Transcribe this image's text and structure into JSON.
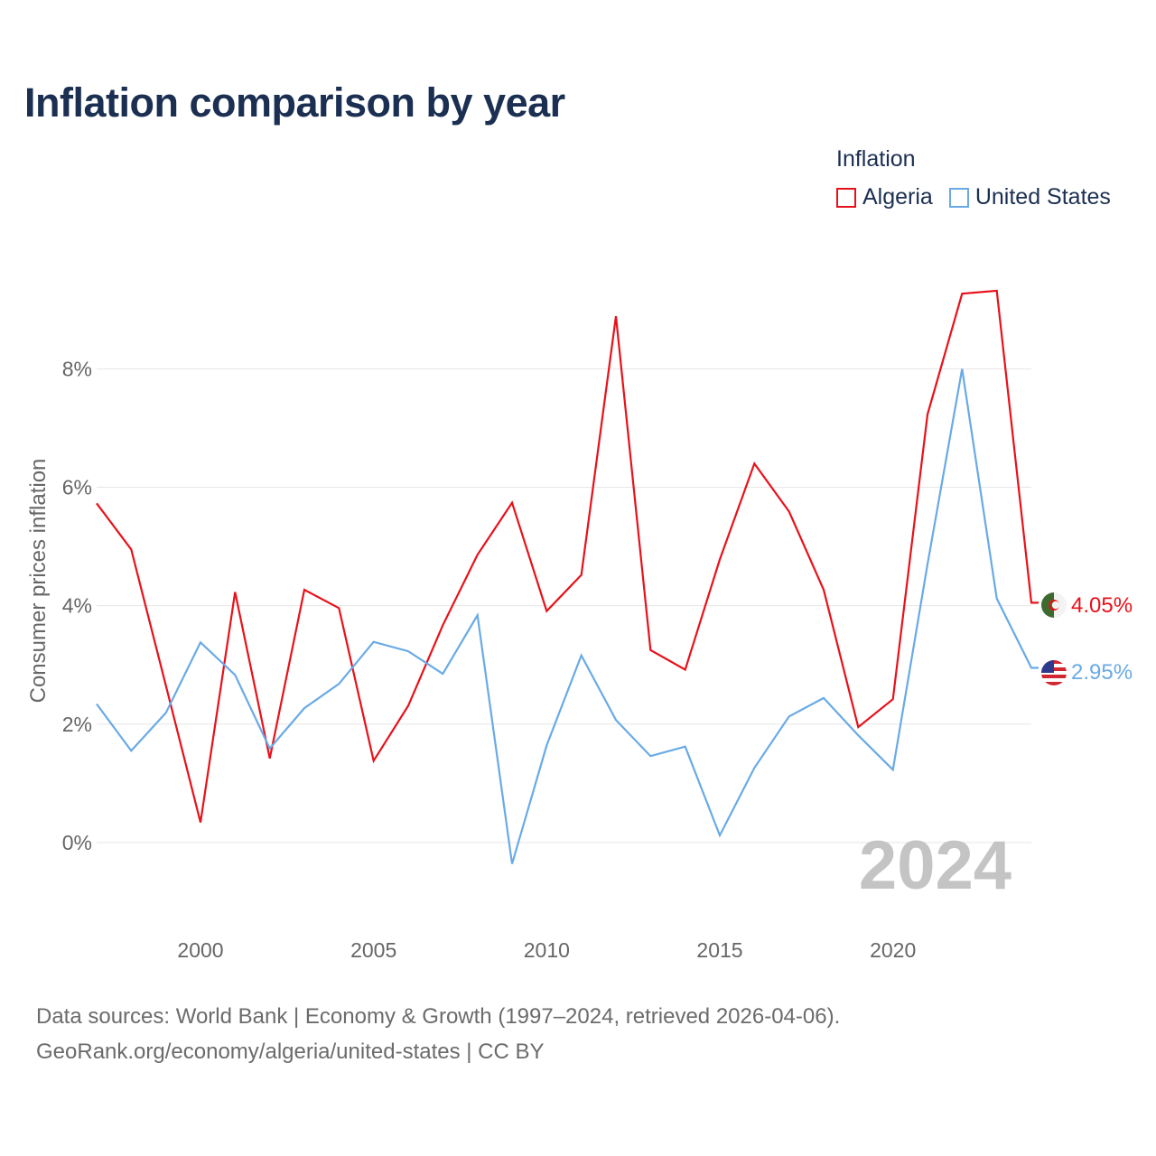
{
  "title": "Inflation comparison by year",
  "legend": {
    "title": "Inflation",
    "items": [
      {
        "label": "Algeria",
        "color": "#e8111a"
      },
      {
        "label": "United States",
        "color": "#69aae6"
      }
    ]
  },
  "source": {
    "line1": "Data sources: World Bank | Economy & Growth (1997–2024, retrieved 2026-04-06).",
    "line2": "GeoRank.org/economy/algeria/united-states | CC BY"
  },
  "chart_data": {
    "type": "line",
    "title": "Inflation comparison by year",
    "xlabel": "",
    "ylabel": "Consumer prices inflation",
    "x": [
      1997,
      1998,
      1999,
      2000,
      2001,
      2002,
      2003,
      2004,
      2005,
      2006,
      2007,
      2008,
      2009,
      2010,
      2011,
      2012,
      2013,
      2014,
      2015,
      2016,
      2017,
      2018,
      2019,
      2020,
      2021,
      2022,
      2023,
      2024
    ],
    "xlim": [
      1997,
      2024
    ],
    "ylim": [
      -1.1,
      9.7
    ],
    "x_ticks": [
      2000,
      2005,
      2010,
      2015,
      2020
    ],
    "x_tick_labels": [
      "2000",
      "2005",
      "2010",
      "2015",
      "2020"
    ],
    "y_ticks": [
      0,
      2,
      4,
      6,
      8
    ],
    "y_tick_labels": [
      "0%",
      "2%",
      "4%",
      "6%",
      "8%"
    ],
    "grid": true,
    "legend_position": "top-right",
    "watermark": "2024",
    "series": [
      {
        "name": "Algeria",
        "color": "#e8111a",
        "end_label": "4.05%",
        "values": [
          5.73,
          4.95,
          2.65,
          0.34,
          4.23,
          1.42,
          4.27,
          3.96,
          1.38,
          2.31,
          3.67,
          4.86,
          5.74,
          3.91,
          4.52,
          8.89,
          3.25,
          2.92,
          4.78,
          6.4,
          5.59,
          4.27,
          1.95,
          2.42,
          7.23,
          9.27,
          9.32,
          4.05
        ]
      },
      {
        "name": "United States",
        "color": "#69aae6",
        "end_label": "2.95%",
        "values": [
          2.34,
          1.55,
          2.19,
          3.38,
          2.83,
          1.59,
          2.27,
          2.68,
          3.39,
          3.23,
          2.85,
          3.84,
          -0.36,
          1.64,
          3.16,
          2.07,
          1.46,
          1.62,
          0.12,
          1.26,
          2.13,
          2.44,
          1.81,
          1.23,
          4.7,
          8.0,
          4.12,
          2.95
        ]
      }
    ]
  }
}
